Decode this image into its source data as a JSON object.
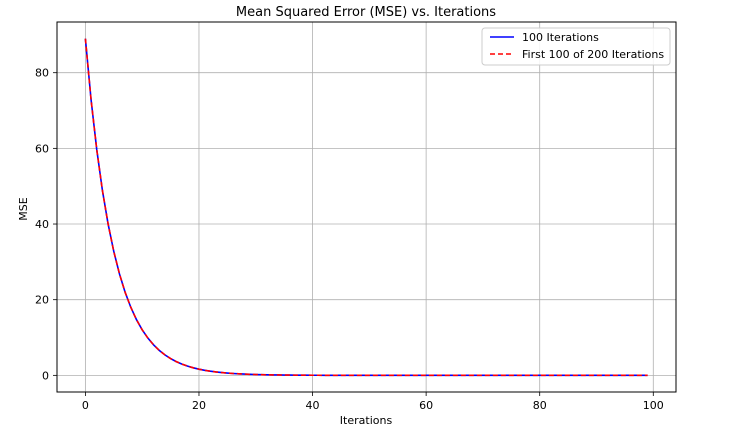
{
  "chart_data": {
    "type": "line",
    "title": "Mean Squared Error (MSE) vs. Iterations",
    "xlabel": "Iterations",
    "ylabel": "MSE",
    "xlim": [
      -5,
      104
    ],
    "ylim": [
      -4.4,
      93.4
    ],
    "xticks": [
      0,
      20,
      40,
      60,
      80,
      100
    ],
    "yticks": [
      0,
      20,
      40,
      60,
      80
    ],
    "grid": true,
    "legend_position": "top-right",
    "decay_model": {
      "initial_mse": 89.0,
      "decay_rate_per_iteration": 0.2
    },
    "series": [
      {
        "name": "100 Iterations",
        "color": "#0000ff",
        "style": "solid",
        "x": [
          0,
          1,
          2,
          3,
          4,
          5,
          6,
          7,
          8,
          9,
          10,
          12,
          14,
          16,
          18,
          20,
          25,
          30,
          35,
          40,
          50,
          60,
          70,
          80,
          90,
          99
        ],
        "y": [
          89.0,
          72.9,
          59.7,
          48.8,
          40.0,
          32.7,
          26.8,
          21.9,
          18.0,
          14.7,
          12.0,
          8.06,
          5.41,
          3.62,
          2.43,
          1.63,
          0.6,
          0.22,
          0.08,
          0.03,
          0.004,
          0.0,
          0.0,
          0.0,
          0.0,
          0.0
        ]
      },
      {
        "name": "First 100 of 200 Iterations",
        "color": "#ff0000",
        "style": "dashed",
        "x": [
          0,
          1,
          2,
          3,
          4,
          5,
          6,
          7,
          8,
          9,
          10,
          12,
          14,
          16,
          18,
          20,
          25,
          30,
          35,
          40,
          50,
          60,
          70,
          80,
          90,
          99
        ],
        "y": [
          89.0,
          72.9,
          59.7,
          48.8,
          40.0,
          32.7,
          26.8,
          21.9,
          18.0,
          14.7,
          12.0,
          8.06,
          5.41,
          3.62,
          2.43,
          1.63,
          0.6,
          0.22,
          0.08,
          0.03,
          0.004,
          0.0,
          0.0,
          0.0,
          0.0,
          0.0
        ]
      }
    ]
  }
}
